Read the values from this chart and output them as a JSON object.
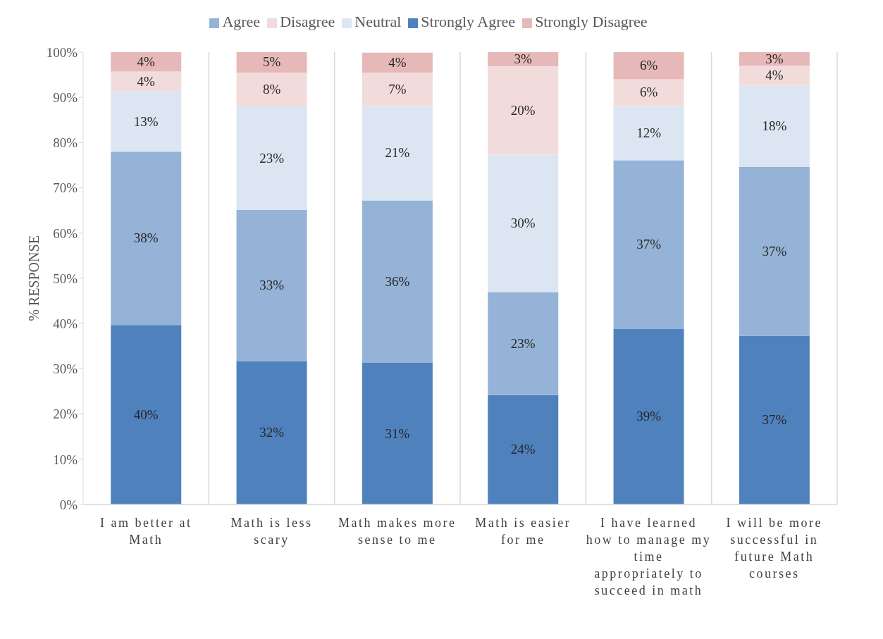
{
  "chart_data": {
    "type": "bar",
    "stacked": true,
    "ylabel": "% RESPONSE",
    "categories": [
      "I am better at Math",
      "Math is less scary",
      "Math makes more sense to me",
      "Math is easier for me",
      "I have learned how to manage my time appropriately to succeed in math",
      "I will be more successful in future Math courses"
    ],
    "series": [
      {
        "name": "Strongly Agree",
        "color": "#4f81bd",
        "values": [
          39.7,
          31.7,
          31.3,
          24.2,
          38.8,
          37.3
        ],
        "value_labels": [
          "40%",
          "32%",
          "31%",
          "24%",
          "39%",
          "37%"
        ]
      },
      {
        "name": "Agree",
        "color": "#95b3d7",
        "values": [
          38.3,
          33.4,
          35.9,
          22.7,
          37.3,
          37.3
        ],
        "value_labels": [
          "38%",
          "33%",
          "36%",
          "23%",
          "37%",
          "37%"
        ]
      },
      {
        "name": "Neutral",
        "color": "#dce6f2",
        "values": [
          13.3,
          22.9,
          20.9,
          30.4,
          12.0,
          18.0
        ],
        "value_labels": [
          "13%",
          "23%",
          "21%",
          "30%",
          "12%",
          "18%"
        ]
      },
      {
        "name": "Disagree",
        "color": "#f2dcdb",
        "values": [
          4.4,
          7.5,
          7.4,
          19.6,
          5.9,
          4.4
        ],
        "value_labels": [
          "4%",
          "8%",
          "7%",
          "20%",
          "6%",
          "4%"
        ]
      },
      {
        "name": "Strongly Disagree",
        "color": "#e6b9b8",
        "values": [
          4.3,
          4.5,
          4.4,
          3.1,
          6.0,
          3.0
        ],
        "value_labels": [
          "4%",
          "5%",
          "4%",
          "3%",
          "6%",
          "3%"
        ]
      }
    ],
    "ylim": [
      0,
      100
    ],
    "yticks": [
      {
        "value": 0,
        "label": "0%"
      },
      {
        "value": 10,
        "label": "10%"
      },
      {
        "value": 20,
        "label": "20%"
      },
      {
        "value": 30,
        "label": "30%"
      },
      {
        "value": 40,
        "label": "40%"
      },
      {
        "value": 50,
        "label": "50%"
      },
      {
        "value": 60,
        "label": "60%"
      },
      {
        "value": 70,
        "label": "70%"
      },
      {
        "value": 80,
        "label": "80%"
      },
      {
        "value": 90,
        "label": "90%"
      },
      {
        "value": 100,
        "label": "100%"
      }
    ],
    "grid": "x",
    "legend": "top"
  }
}
